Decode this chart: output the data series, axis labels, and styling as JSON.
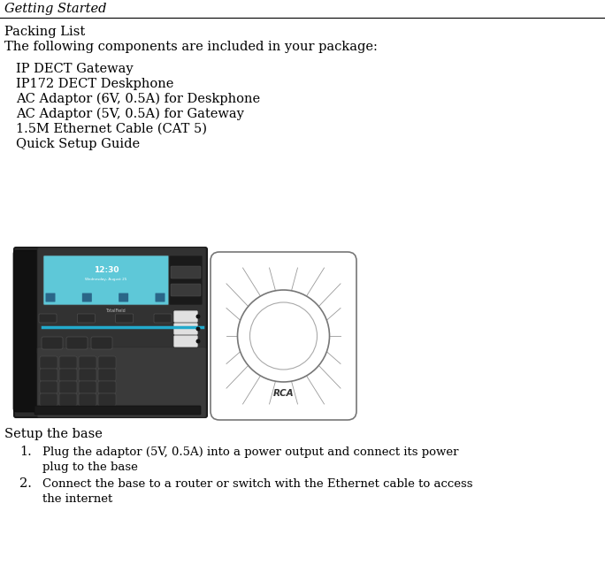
{
  "title": "Getting Started",
  "section1_title": "Packing List",
  "section1_subtitle": "The following components are included in your package:",
  "packing_items": [
    "IP DECT Gateway",
    "IP172 DECT Deskphone",
    "AC Adaptor (6V, 0.5A) for Deskphone",
    "AC Adaptor (5V, 0.5A) for Gateway",
    "1.5M Ethernet Cable (CAT 5)",
    "Quick Setup Guide"
  ],
  "section2_title": "Setup the base",
  "setup_steps": [
    "Plug the adaptor (5V, 0.5A) into a power output and connect its power\nplug to the base",
    "Connect the base to a router or switch with the Ethernet cable to access\nthe internet"
  ],
  "bg_color": "#ffffff",
  "text_color": "#000000",
  "title_fontsize": 10.5,
  "body_fontsize": 10.5,
  "small_fontsize": 9.5,
  "font_family": "DejaVu Serif"
}
